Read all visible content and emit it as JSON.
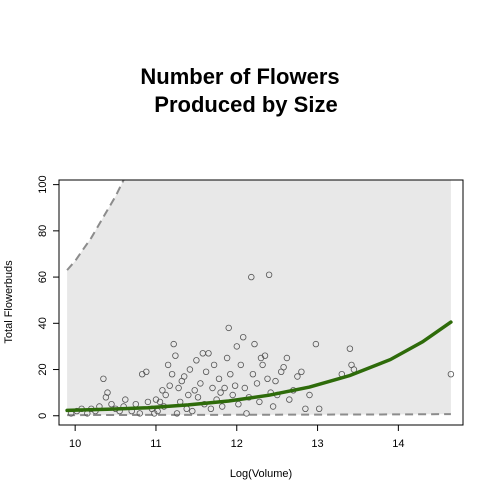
{
  "chart_data": {
    "type": "scatter",
    "title_lines": [
      "Number of Flowers",
      "Produced by Size"
    ],
    "xlabel": "Log(Volume)",
    "ylabel": "Total Flowerbuds",
    "xlim": [
      9.8,
      14.8
    ],
    "ylim": [
      -4,
      102
    ],
    "x_ticks": [
      10,
      11,
      12,
      13,
      14
    ],
    "y_ticks": [
      0,
      20,
      40,
      60,
      80,
      100
    ],
    "colors": {
      "fit_line": "#2e6b0a",
      "band_fill": "#e8e8e8",
      "bound_line": "#8c8c8c",
      "points": "#555555"
    },
    "fit_curve": {
      "x": [
        9.9,
        10.4,
        10.9,
        11.4,
        11.9,
        12.4,
        12.9,
        13.4,
        13.9,
        14.3,
        14.65
      ],
      "y": [
        2.3,
        2.8,
        3.5,
        4.7,
        6.4,
        8.9,
        12.4,
        17.4,
        24.3,
        32.0,
        40.5
      ]
    },
    "upper_bound": {
      "x": [
        9.9,
        10.0,
        10.1,
        10.2,
        10.3,
        10.4,
        10.5,
        10.6
      ],
      "y": [
        63,
        67,
        72,
        77,
        83,
        89,
        95,
        102
      ]
    },
    "lower_bound": {
      "x": [
        9.9,
        11.0,
        12.0,
        13.0,
        14.0,
        14.65
      ],
      "y": [
        0.3,
        0.35,
        0.4,
        0.5,
        0.6,
        0.7
      ]
    },
    "points": [
      [
        9.95,
        1
      ],
      [
        10.02,
        2
      ],
      [
        10.08,
        3
      ],
      [
        10.15,
        1
      ],
      [
        10.2,
        3
      ],
      [
        10.25,
        2
      ],
      [
        10.3,
        4
      ],
      [
        10.35,
        16
      ],
      [
        10.38,
        8
      ],
      [
        10.4,
        10
      ],
      [
        10.45,
        5
      ],
      [
        10.5,
        3
      ],
      [
        10.55,
        2
      ],
      [
        10.6,
        4
      ],
      [
        10.62,
        7
      ],
      [
        10.7,
        2
      ],
      [
        10.75,
        5
      ],
      [
        10.8,
        1
      ],
      [
        10.83,
        18
      ],
      [
        10.88,
        19
      ],
      [
        10.9,
        6
      ],
      [
        10.95,
        3
      ],
      [
        10.98,
        1
      ],
      [
        11.0,
        7
      ],
      [
        11.02,
        2
      ],
      [
        11.05,
        6
      ],
      [
        11.08,
        11
      ],
      [
        11.1,
        4
      ],
      [
        11.12,
        9
      ],
      [
        11.15,
        22
      ],
      [
        11.17,
        13
      ],
      [
        11.2,
        18
      ],
      [
        11.22,
        31
      ],
      [
        11.24,
        26
      ],
      [
        11.26,
        1
      ],
      [
        11.28,
        12
      ],
      [
        11.3,
        6
      ],
      [
        11.32,
        15
      ],
      [
        11.35,
        17
      ],
      [
        11.38,
        3
      ],
      [
        11.4,
        9
      ],
      [
        11.42,
        20
      ],
      [
        11.45,
        2
      ],
      [
        11.48,
        11
      ],
      [
        11.5,
        24
      ],
      [
        11.52,
        8
      ],
      [
        11.55,
        14
      ],
      [
        11.58,
        27
      ],
      [
        11.6,
        5
      ],
      [
        11.62,
        19
      ],
      [
        11.65,
        27
      ],
      [
        11.68,
        3
      ],
      [
        11.7,
        12
      ],
      [
        11.72,
        22
      ],
      [
        11.75,
        7
      ],
      [
        11.78,
        16
      ],
      [
        11.8,
        10
      ],
      [
        11.82,
        4
      ],
      [
        11.85,
        12
      ],
      [
        11.88,
        25
      ],
      [
        11.9,
        38
      ],
      [
        11.92,
        18
      ],
      [
        11.95,
        9
      ],
      [
        11.98,
        13
      ],
      [
        12.0,
        30
      ],
      [
        12.02,
        5
      ],
      [
        12.05,
        22
      ],
      [
        12.08,
        34
      ],
      [
        12.1,
        12
      ],
      [
        12.12,
        1
      ],
      [
        12.15,
        8
      ],
      [
        12.18,
        60
      ],
      [
        12.2,
        18
      ],
      [
        12.22,
        31
      ],
      [
        12.25,
        14
      ],
      [
        12.28,
        6
      ],
      [
        12.3,
        25
      ],
      [
        12.32,
        22
      ],
      [
        12.35,
        26
      ],
      [
        12.38,
        16
      ],
      [
        12.4,
        61
      ],
      [
        12.42,
        10
      ],
      [
        12.45,
        4
      ],
      [
        12.48,
        15
      ],
      [
        12.5,
        9
      ],
      [
        12.55,
        19
      ],
      [
        12.58,
        21
      ],
      [
        12.62,
        25
      ],
      [
        12.65,
        7
      ],
      [
        12.7,
        11
      ],
      [
        12.75,
        17
      ],
      [
        12.8,
        19
      ],
      [
        12.85,
        3
      ],
      [
        12.9,
        9
      ],
      [
        12.98,
        31
      ],
      [
        13.02,
        3
      ],
      [
        13.3,
        18
      ],
      [
        13.4,
        29
      ],
      [
        13.42,
        22
      ],
      [
        13.45,
        20
      ],
      [
        14.65,
        18
      ]
    ]
  }
}
